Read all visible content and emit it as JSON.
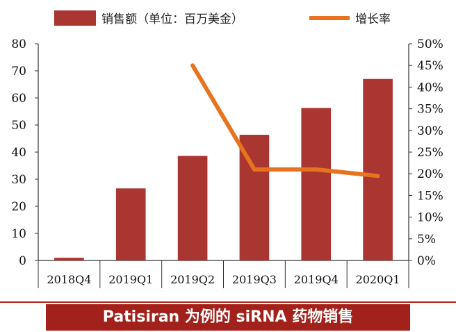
{
  "chart_data": {
    "type": "bar",
    "categories": [
      "2018Q4",
      "2019Q1",
      "2019Q2",
      "2019Q3",
      "2019Q4",
      "2020Q1"
    ],
    "series": [
      {
        "name": "销售额（单位：百万美金）",
        "type": "bar",
        "axis": "left",
        "color": "#a93630",
        "values": [
          1,
          26.6,
          38.6,
          46.4,
          56.3,
          67.0
        ]
      },
      {
        "name": "增长率",
        "type": "line",
        "axis": "right",
        "color": "#e8731e",
        "values": [
          null,
          null,
          0.45,
          0.21,
          0.21,
          0.195
        ]
      }
    ],
    "y_left": {
      "ticks": [
        0,
        10,
        20,
        30,
        40,
        50,
        60,
        70,
        80
      ],
      "ylim": [
        0,
        80
      ]
    },
    "y_right": {
      "ticks": [
        "0%",
        "5%",
        "10%",
        "15%",
        "20%",
        "25%",
        "30%",
        "35%",
        "40%",
        "45%",
        "50%"
      ],
      "ylim": [
        0,
        0.5
      ]
    },
    "legend_position": "top",
    "grid": false
  },
  "caption": "Patisiran 为例的 siRNA 药物销售",
  "colors": {
    "bar": "#a93630",
    "line": "#e8731e",
    "caption_bg": "#a3211b",
    "rule": "#b22318"
  }
}
